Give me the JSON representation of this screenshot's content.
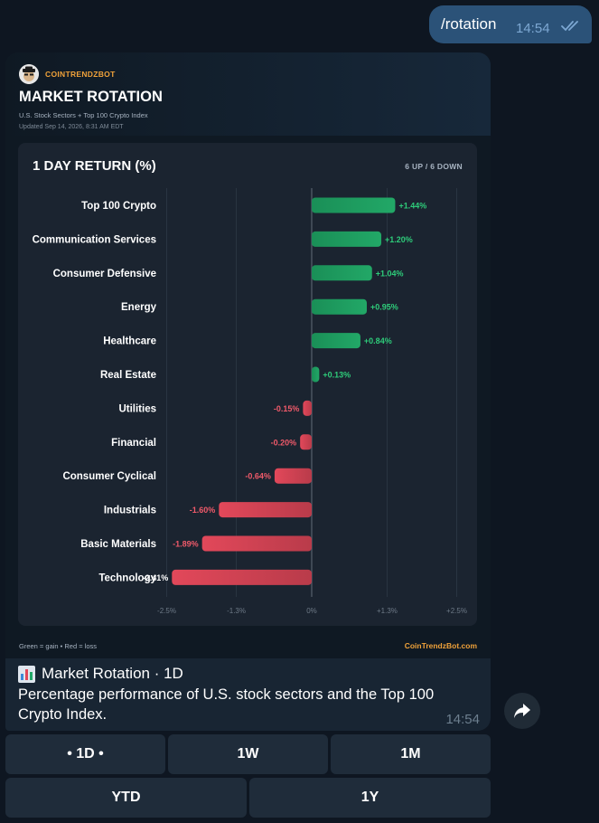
{
  "outgoing": {
    "text": "/rotation",
    "time": "14:54"
  },
  "card": {
    "brand": "COINTRENDZBOT",
    "title": "MARKET ROTATION",
    "subtitle": "U.S. Stock Sectors + Top 100 Crypto Index",
    "updated": "Updated Sep 14, 2026, 8:31 AM EDT",
    "footer_legend": "Green = gain  •  Red = loss",
    "footer_site": "CoinTrendzBot.com"
  },
  "chart_data": {
    "type": "bar",
    "orientation": "horizontal",
    "title": "1 DAY RETURN (%)",
    "counts": "6 UP  /  6 DOWN",
    "categories": [
      "Top 100 Crypto",
      "Communication Services",
      "Consumer Defensive",
      "Energy",
      "Healthcare",
      "Real Estate",
      "Utilities",
      "Financial",
      "Consumer Cyclical",
      "Industrials",
      "Basic Materials",
      "Technology"
    ],
    "values": [
      1.44,
      1.2,
      1.04,
      0.95,
      0.84,
      0.13,
      -0.15,
      -0.2,
      -0.64,
      -1.6,
      -1.89,
      -2.41
    ],
    "labels": [
      "+1.44%",
      "+1.20%",
      "+1.04%",
      "+0.95%",
      "+0.84%",
      "+0.13%",
      "-0.15%",
      "-0.20%",
      "-0.64%",
      "-1.60%",
      "-1.89%",
      "-2.41%"
    ],
    "xticks": [
      -2.5,
      -1.3,
      0,
      1.3,
      2.5
    ],
    "xtick_labels": [
      "-2.5%",
      "-1.3%",
      "0%",
      "+1.3%",
      "+2.5%"
    ],
    "xlim": [
      -2.5,
      2.5
    ],
    "grid": true,
    "colors": {
      "gain": "#22a867",
      "loss": "#e2485a",
      "gain_label": "#2ecc7a",
      "loss_label": "#f05a6a"
    }
  },
  "caption": {
    "icon": "bar-chart-icon",
    "title": "Market Rotation · 1D",
    "text": "Percentage performance of U.S. stock sectors and the Top 100 Crypto Index.",
    "time": "14:54"
  },
  "keyboard": {
    "row1": [
      "• 1D •",
      "1W",
      "1M"
    ],
    "row2": [
      "YTD",
      "1Y"
    ]
  }
}
